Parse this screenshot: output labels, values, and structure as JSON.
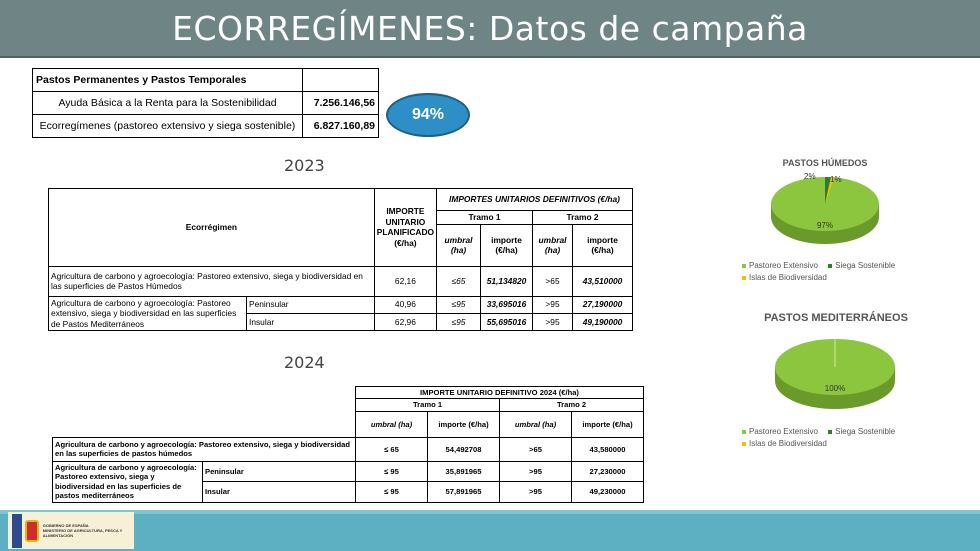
{
  "title": "ECORREGÍMENES: Datos de campaña",
  "summary_table": {
    "header": "Pastos Permanentes y Pastos Temporales",
    "rows": [
      {
        "label": "Ayuda Básica a la Renta para la Sostenibilidad",
        "value": "7.256.146,56"
      },
      {
        "label": "Ecorregímenes (pastoreo extensivo y siega sostenible)",
        "value": "6.827.160,89"
      }
    ]
  },
  "badge": "94%",
  "year_2023": "2023",
  "year_2024": "2024",
  "table_2023": {
    "col_ecorregimen": "Ecorrégimen",
    "col_importe": "IMPORTE UNITARIO PLANIFICADO (€/ha)",
    "col_definitivos": "IMPORTES UNITARIOS DEFINITIVOS (€/ha)",
    "tramo1": "Tramo 1",
    "tramo2": "Tramo 2",
    "umbral": "umbral (ha)",
    "importe": "importe (€/ha)",
    "umbral2": "umbral (ha)",
    "importe2": "importe (€/ha)",
    "row1": {
      "label": "Agricultura de carbono y agroecología: Pastoreo extensivo, siega y biodiversidad en las superficies de Pastos Húmedos",
      "plan": "62,16",
      "u1": "≤65",
      "i1": "51,134820",
      "u2": ">65",
      "i2": "43,510000"
    },
    "row_group_label": "Agricultura de carbono y agroecología: Pastoreo extensivo, siega y biodiversidad en las superficies de Pastos Mediterráneos",
    "row2": {
      "sub": "Peninsular",
      "plan": "40,96",
      "u1": "≤95",
      "i1": "33,695016",
      "u2": ">95",
      "i2": "27,190000"
    },
    "row3": {
      "sub": "Insular",
      "plan": "62,96",
      "u1": "≤95",
      "i1": "55,695016",
      "u2": ">95",
      "i2": "49,190000"
    }
  },
  "table_2024": {
    "header": "IMPORTE UNITARIO DEFINITIVO 2024 (€/ha)",
    "tramo1": "Tramo 1",
    "tramo2": "Tramo 2",
    "umbral": "umbral (ha)",
    "importe": "importe (€/ha)",
    "umbral2": "umbral (ha)",
    "importe2": "importe (€/ha)",
    "row1": {
      "label": "Agricultura de carbono y agroecología: Pastoreo extensivo, siega y biodiversidad en las superficies de pastos húmedos",
      "u1": "≤ 65",
      "i1": "54,492708",
      "u2": ">65",
      "i2": "43,580000"
    },
    "row_group_label": "Agricultura de carbono y agroecología: Pastoreo extensivo, siega y biodiversidad en las superficies de pastos mediterráneos",
    "row2": {
      "sub": "Peninsular",
      "u1": "≤ 95",
      "i1": "35,891965",
      "u2": ">95",
      "i2": "27,230000"
    },
    "row3": {
      "sub": "Insular",
      "u1": "≤ 95",
      "i1": "57,891965",
      "u2": ">95",
      "i2": "49,230000"
    }
  },
  "pie_humedos": {
    "title": "PASTOS HÚMEDOS",
    "labels": {
      "a": "97%",
      "b": "2%",
      "c": "1%"
    },
    "legend": [
      "Pastoreo Extensivo",
      "Siega Sostenible",
      "Islas de Biodiversidad"
    ]
  },
  "pie_mediterraneos": {
    "title": "PASTOS MEDITERRÁNEOS",
    "labels": {
      "a": "100%"
    },
    "legend": [
      "Pastoreo Extensivo",
      "Siega Sostenible",
      "Islas de Biodiversidad"
    ]
  },
  "chart_data": [
    {
      "type": "pie",
      "title": "PASTOS HÚMEDOS",
      "categories": [
        "Pastoreo Extensivo",
        "Siega Sostenible",
        "Islas de Biodiversidad"
      ],
      "values": [
        97,
        2,
        1
      ],
      "legend": "bottom"
    },
    {
      "type": "pie",
      "title": "PASTOS MEDITERRÁNEOS",
      "categories": [
        "Pastoreo Extensivo",
        "Siega Sostenible",
        "Islas de Biodiversidad"
      ],
      "values": [
        100,
        0,
        0
      ],
      "legend": "bottom"
    }
  ],
  "colors": {
    "title_bar": "#6f8585",
    "badge": "#2e8fc6",
    "pie_green": "#8cc63f",
    "pie_dark": "#2f7d32",
    "pie_yellow": "#f2c200",
    "footer": "#5db0c2"
  },
  "footer": {
    "logo_line1": "GOBIERNO DE ESPAÑA",
    "logo_line2": "MINISTERIO DE AGRICULTURA, PESCA Y ALIMENTACIÓN"
  }
}
